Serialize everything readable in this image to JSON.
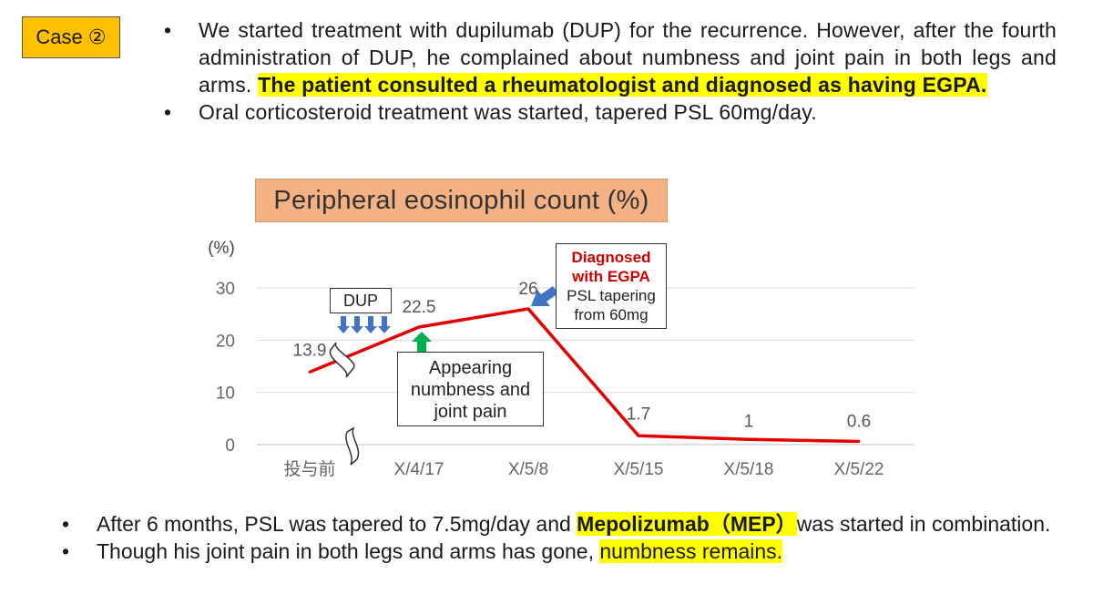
{
  "case_label": "Case ②",
  "top_bullets": {
    "b1_plain": "We started treatment with dupilumab (DUP) for the recurrence. However, after the fourth administration of DUP, he complained about numbness and joint pain in both legs and arms. ",
    "b1_highlight": "The patient consulted a rheumatologist and diagnosed as having EGPA.",
    "b2": "Oral corticosteroid treatment was started, tapered PSL 60mg/day."
  },
  "chart_data": {
    "type": "line",
    "title": "Peripheral eosinophil count (%)",
    "ylabel": "(%)",
    "categories": [
      "投与前",
      "X/4/17",
      "X/5/8",
      "X/5/15",
      "X/5/18",
      "X/5/22"
    ],
    "ylim": [
      0,
      30
    ],
    "yticks": [
      0,
      10,
      20,
      30
    ],
    "grid": true,
    "axis_break_between": [
      "投与前",
      "X/4/17"
    ],
    "series": [
      {
        "color": "#e30000",
        "values": [
          13.9,
          22.5,
          26,
          1.7,
          1,
          0.6
        ],
        "labels": [
          "13.9",
          "22.5",
          "26",
          "1.7",
          "1",
          "0.6"
        ]
      }
    ],
    "annotations": {
      "dup": "DUP",
      "diag_line1": "Diagnosed",
      "diag_line2": "with EGPA",
      "diag_line3": "PSL tapering",
      "diag_line4": "from 60mg",
      "numb_line1": "Appearing",
      "numb_line2": "numbness and",
      "numb_line3": "joint pain"
    }
  },
  "bottom_bullets": {
    "b1_pre": "After 6 months, PSL was tapered to 7.5mg/day and ",
    "b1_highlight": "Mepolizumab（MEP）",
    "b1_post": "was started in combination.",
    "b2_pre": "Though his joint pain in both legs and arms has gone, ",
    "b2_highlight": "numbness remains."
  },
  "colors": {
    "badge": "#ffc000",
    "highlight": "#ffff00",
    "line": "#e30000",
    "title_fill": "#f4b183",
    "dup_arrows": "#4472c4",
    "green_arrow": "#00b050"
  }
}
